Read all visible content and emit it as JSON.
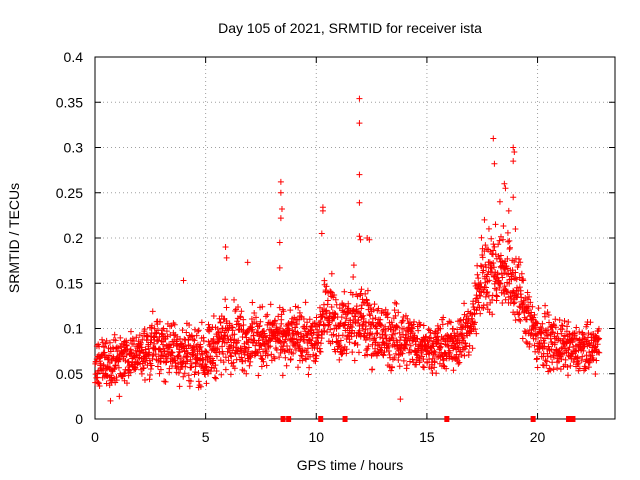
{
  "chart_data": {
    "type": "scatter",
    "title": "Day 105 of 2021, SRMTID for receiver ista",
    "xlabel": "GPS time / hours",
    "ylabel": "SRMTID / TECUs",
    "xlim": [
      0,
      23.5
    ],
    "ylim": [
      0,
      0.4
    ],
    "xticks": [
      0,
      5,
      10,
      15,
      20
    ],
    "yticks": [
      0,
      0.05,
      0.1,
      0.15,
      0.2,
      0.25,
      0.3,
      0.35,
      0.4
    ],
    "xtick_labels": [
      "0",
      "5",
      "10",
      "15",
      "20"
    ],
    "ytick_labels": [
      "0",
      "0.05",
      "0.1",
      "0.15",
      "0.2",
      "0.25",
      "0.3",
      "0.35",
      "0.4"
    ],
    "grid": true,
    "marker": "+",
    "series_color": "#ff0000",
    "series": [
      {
        "name": "SRMTID",
        "envelope": [
          {
            "t": 0.0,
            "base": 0.06,
            "spread": 0.03
          },
          {
            "t": 1.0,
            "base": 0.06,
            "spread": 0.03
          },
          {
            "t": 2.0,
            "base": 0.075,
            "spread": 0.03
          },
          {
            "t": 3.0,
            "base": 0.08,
            "spread": 0.035
          },
          {
            "t": 4.0,
            "base": 0.075,
            "spread": 0.04
          },
          {
            "t": 5.0,
            "base": 0.07,
            "spread": 0.035
          },
          {
            "t": 6.0,
            "base": 0.095,
            "spread": 0.04
          },
          {
            "t": 7.0,
            "base": 0.085,
            "spread": 0.04
          },
          {
            "t": 8.0,
            "base": 0.09,
            "spread": 0.035
          },
          {
            "t": 9.0,
            "base": 0.09,
            "spread": 0.035
          },
          {
            "t": 10.0,
            "base": 0.085,
            "spread": 0.035
          },
          {
            "t": 10.5,
            "base": 0.13,
            "spread": 0.04
          },
          {
            "t": 11.0,
            "base": 0.1,
            "spread": 0.04
          },
          {
            "t": 12.0,
            "base": 0.11,
            "spread": 0.045
          },
          {
            "t": 13.0,
            "base": 0.09,
            "spread": 0.04
          },
          {
            "t": 14.0,
            "base": 0.09,
            "spread": 0.035
          },
          {
            "t": 15.0,
            "base": 0.08,
            "spread": 0.03
          },
          {
            "t": 16.0,
            "base": 0.08,
            "spread": 0.03
          },
          {
            "t": 17.0,
            "base": 0.1,
            "spread": 0.035
          },
          {
            "t": 17.5,
            "base": 0.16,
            "spread": 0.05
          },
          {
            "t": 18.5,
            "base": 0.17,
            "spread": 0.05
          },
          {
            "t": 19.3,
            "base": 0.13,
            "spread": 0.05
          },
          {
            "t": 20.0,
            "base": 0.09,
            "spread": 0.035
          },
          {
            "t": 21.0,
            "base": 0.08,
            "spread": 0.03
          },
          {
            "t": 22.0,
            "base": 0.075,
            "spread": 0.03
          },
          {
            "t": 22.8,
            "base": 0.08,
            "spread": 0.03
          }
        ],
        "samples_per_hour": 100,
        "range_hours": [
          0.0,
          22.8
        ],
        "outliers": [
          {
            "x": 8.4,
            "y": 0.262
          },
          {
            "x": 8.4,
            "y": 0.25
          },
          {
            "x": 8.45,
            "y": 0.232
          },
          {
            "x": 8.4,
            "y": 0.222
          },
          {
            "x": 8.35,
            "y": 0.195
          },
          {
            "x": 8.35,
            "y": 0.167
          },
          {
            "x": 10.3,
            "y": 0.234
          },
          {
            "x": 10.3,
            "y": 0.23
          },
          {
            "x": 10.25,
            "y": 0.205
          },
          {
            "x": 11.95,
            "y": 0.354
          },
          {
            "x": 11.95,
            "y": 0.327
          },
          {
            "x": 11.95,
            "y": 0.27
          },
          {
            "x": 11.95,
            "y": 0.239
          },
          {
            "x": 11.95,
            "y": 0.202
          },
          {
            "x": 12.0,
            "y": 0.198
          },
          {
            "x": 12.3,
            "y": 0.2
          },
          {
            "x": 12.4,
            "y": 0.198
          },
          {
            "x": 11.7,
            "y": 0.17
          },
          {
            "x": 5.9,
            "y": 0.19
          },
          {
            "x": 5.95,
            "y": 0.178
          },
          {
            "x": 4.0,
            "y": 0.153
          },
          {
            "x": 6.9,
            "y": 0.173
          },
          {
            "x": 18.0,
            "y": 0.31
          },
          {
            "x": 18.05,
            "y": 0.282
          },
          {
            "x": 18.9,
            "y": 0.3
          },
          {
            "x": 18.95,
            "y": 0.295
          },
          {
            "x": 18.9,
            "y": 0.285
          },
          {
            "x": 18.5,
            "y": 0.26
          },
          {
            "x": 18.55,
            "y": 0.255
          },
          {
            "x": 18.9,
            "y": 0.245
          },
          {
            "x": 18.3,
            "y": 0.24
          },
          {
            "x": 18.7,
            "y": 0.23
          },
          {
            "x": 17.6,
            "y": 0.22
          },
          {
            "x": 18.1,
            "y": 0.215
          },
          {
            "x": 19.0,
            "y": 0.21
          },
          {
            "x": 13.8,
            "y": 0.022
          },
          {
            "x": 0.7,
            "y": 0.02
          },
          {
            "x": 1.1,
            "y": 0.025
          }
        ]
      }
    ],
    "gap_markers_x": [
      8.5,
      8.75,
      10.2,
      11.3,
      15.9,
      19.8,
      21.4,
      21.6
    ]
  }
}
